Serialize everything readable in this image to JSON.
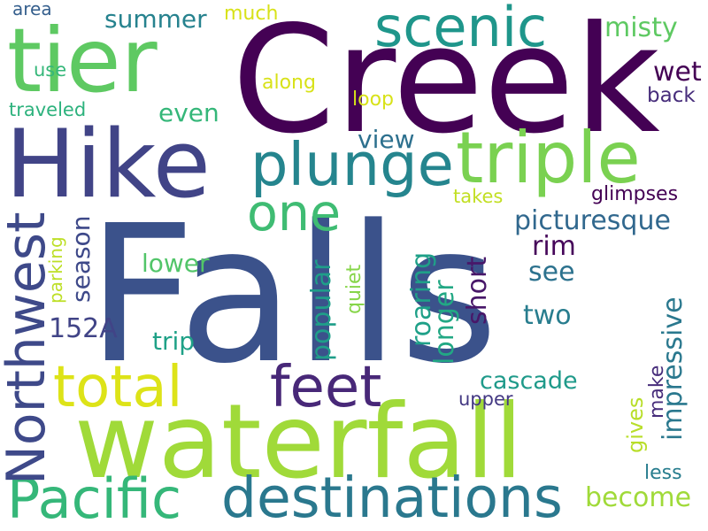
{
  "palette": {
    "dark_purple": "#440154",
    "indigo": "#472d7b",
    "blue": "#3b528b",
    "slate_blue": "#2c728e",
    "teal": "#21918c",
    "sea_green": "#28ae80",
    "green": "#5ec962",
    "lime": "#addc30",
    "yellow": "#d8e219"
  },
  "words": [
    {
      "id": "falls",
      "text": "Falls",
      "color": "#3b528b"
    },
    {
      "id": "creek",
      "text": "Creek",
      "color": "#440154"
    },
    {
      "id": "waterfall",
      "text": "waterfall",
      "color": "#a0da39"
    },
    {
      "id": "hike",
      "text": "Hike",
      "color": "#414487"
    },
    {
      "id": "tier",
      "text": "tier",
      "color": "#5ec962"
    },
    {
      "id": "triple",
      "text": "triple",
      "color": "#7ad151"
    },
    {
      "id": "plunge",
      "text": "plunge",
      "color": "#25858e"
    },
    {
      "id": "scenic",
      "text": "scenic",
      "color": "#1f968b"
    },
    {
      "id": "destinations",
      "text": "destinations",
      "color": "#2a788e"
    },
    {
      "id": "pacific",
      "text": "Pacific",
      "color": "#35b779"
    },
    {
      "id": "total",
      "text": "total",
      "color": "#dde318"
    },
    {
      "id": "feet",
      "text": "feet",
      "color": "#482878"
    },
    {
      "id": "one",
      "text": "one",
      "color": "#3fbc73"
    },
    {
      "id": "northwest",
      "text": "Northwest",
      "color": "#3e4989"
    },
    {
      "id": "picturesque",
      "text": "picturesque",
      "color": "#31688e"
    },
    {
      "id": "view",
      "text": "view",
      "color": "#2d708e"
    },
    {
      "id": "summer",
      "text": "summer",
      "color": "#26828e"
    },
    {
      "id": "much",
      "text": "much",
      "color": "#d8e219"
    },
    {
      "id": "misty",
      "text": "misty",
      "color": "#5ec962"
    },
    {
      "id": "wet",
      "text": "wet",
      "color": "#440154"
    },
    {
      "id": "even",
      "text": "even",
      "color": "#35b779"
    },
    {
      "id": "back",
      "text": "back",
      "color": "#472d7b"
    },
    {
      "id": "loop",
      "text": "loop",
      "color": "#d8e219"
    },
    {
      "id": "along",
      "text": "along",
      "color": "#d8e219"
    },
    {
      "id": "use",
      "text": "use",
      "color": "#35b779"
    },
    {
      "id": "area",
      "text": "area",
      "color": "#355f8d"
    },
    {
      "id": "traveled",
      "text": "traveled",
      "color": "#2db27d"
    },
    {
      "id": "glimpses",
      "text": "glimpses",
      "color": "#440154"
    },
    {
      "id": "takes",
      "text": "takes",
      "color": "#c2df23"
    },
    {
      "id": "rim",
      "text": "rim",
      "color": "#46075a"
    },
    {
      "id": "see",
      "text": "see",
      "color": "#2c728e"
    },
    {
      "id": "two",
      "text": "two",
      "color": "#287d8e"
    },
    {
      "id": "lower",
      "text": "lower",
      "color": "#52c569"
    },
    {
      "id": "trip",
      "text": "trip",
      "color": "#1fa187"
    },
    {
      "id": "152a",
      "text": "152A",
      "color": "#414487"
    },
    {
      "id": "cascade",
      "text": "cascade",
      "color": "#1f9a8a"
    },
    {
      "id": "upper",
      "text": "upper",
      "color": "#443983"
    },
    {
      "id": "become",
      "text": "become",
      "color": "#a0da39"
    },
    {
      "id": "less",
      "text": "less",
      "color": "#287d8e"
    },
    {
      "id": "season",
      "text": "season",
      "color": "#3e4989"
    },
    {
      "id": "parking",
      "text": "parking",
      "color": "#bddf26"
    },
    {
      "id": "popular",
      "text": "popular",
      "color": "#1f9e89"
    },
    {
      "id": "quiet",
      "text": "quiet",
      "color": "#86d549"
    },
    {
      "id": "roaring",
      "text": "roaring",
      "color": "#1fa088"
    },
    {
      "id": "longer",
      "text": "longer",
      "color": "#22a884"
    },
    {
      "id": "short",
      "text": "short",
      "color": "#481769"
    },
    {
      "id": "impressive",
      "text": "impressive",
      "color": "#2a788e"
    },
    {
      "id": "gives",
      "text": "gives",
      "color": "#b8de29"
    },
    {
      "id": "make",
      "text": "make",
      "color": "#472d7b"
    }
  ]
}
